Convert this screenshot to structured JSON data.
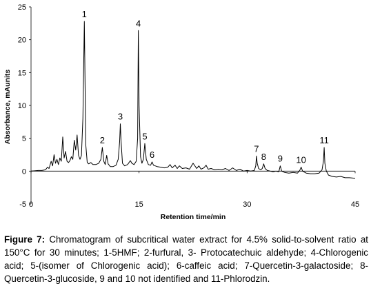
{
  "chart_data": {
    "type": "line",
    "xlabel": "Retention time/min",
    "ylabel": "Absorbance, mAunits",
    "xlim": [
      0,
      45
    ],
    "ylim": [
      -5,
      25
    ],
    "x_ticks": [
      "0",
      "15",
      "30",
      "45"
    ],
    "y_ticks": [
      "25",
      "20",
      "15",
      "10",
      "5",
      "0",
      "-5"
    ],
    "peaks": [
      {
        "label": "1",
        "x": 7.4,
        "y": 22.8
      },
      {
        "label": "2",
        "x": 9.9,
        "y": 3.6
      },
      {
        "label": "3",
        "x": 12.4,
        "y": 7.2
      },
      {
        "label": "4",
        "x": 14.9,
        "y": 21.4
      },
      {
        "label": "5",
        "x": 15.8,
        "y": 4.2
      },
      {
        "label": "6",
        "x": 16.8,
        "y": 1.4
      },
      {
        "label": "7",
        "x": 31.3,
        "y": 2.3
      },
      {
        "label": "8",
        "x": 32.3,
        "y": 1.1
      },
      {
        "label": "9",
        "x": 34.6,
        "y": 0.8
      },
      {
        "label": "10",
        "x": 37.5,
        "y": 0.6
      },
      {
        "label": "11",
        "x": 40.7,
        "y": 3.6
      }
    ],
    "trace": {
      "x": [
        0,
        0.5,
        1,
        1.5,
        2,
        2.3,
        2.5,
        2.8,
        3.0,
        3.2,
        3.4,
        3.6,
        3.8,
        4.0,
        4.2,
        4.4,
        4.6,
        4.8,
        5.0,
        5.2,
        5.4,
        5.6,
        5.8,
        6.0,
        6.2,
        6.4,
        6.6,
        6.8,
        7.0,
        7.2,
        7.4,
        7.6,
        7.8,
        8.0,
        8.3,
        8.6,
        9.0,
        9.4,
        9.7,
        9.9,
        10.1,
        10.3,
        10.5,
        10.7,
        11.0,
        11.4,
        11.8,
        12.1,
        12.3,
        12.4,
        12.5,
        12.7,
        13.0,
        13.4,
        13.8,
        14.0,
        14.3,
        14.6,
        14.8,
        14.9,
        15.0,
        15.2,
        15.4,
        15.6,
        15.8,
        16.0,
        16.3,
        16.6,
        16.8,
        17.0,
        17.5,
        18.0,
        18.5,
        19.0,
        19.3,
        19.6,
        20.0,
        20.3,
        20.6,
        21.0,
        21.5,
        22.0,
        22.5,
        23.0,
        23.3,
        23.6,
        24.0,
        24.3,
        24.6,
        25.0,
        25.5,
        26.0,
        26.5,
        27.0,
        27.5,
        28.0,
        28.5,
        29.0,
        29.5,
        30.0,
        30.5,
        31.0,
        31.2,
        31.3,
        31.4,
        31.6,
        31.9,
        32.1,
        32.3,
        32.5,
        32.8,
        33.2,
        33.6,
        34.0,
        34.4,
        34.6,
        34.8,
        35.2,
        35.8,
        36.4,
        37.0,
        37.3,
        37.5,
        37.7,
        38.2,
        38.8,
        39.4,
        40.0,
        40.4,
        40.6,
        40.7,
        40.8,
        41.0,
        41.3,
        41.8,
        42.4,
        43.0,
        43.6,
        44.2,
        45.0
      ],
      "y": [
        0,
        0.05,
        0.1,
        0.1,
        0.2,
        0.6,
        0.4,
        1.5,
        0.8,
        2.5,
        1.2,
        1.8,
        1.0,
        2.0,
        1.5,
        5.2,
        2.0,
        3.0,
        1.5,
        1.3,
        1.6,
        2.2,
        1.8,
        4.7,
        3.2,
        5.5,
        2.4,
        1.8,
        2.4,
        8.0,
        22.8,
        4.0,
        1.3,
        1.1,
        1.3,
        1.0,
        1.0,
        1.2,
        1.8,
        3.6,
        1.5,
        1.0,
        2.4,
        1.1,
        0.7,
        0.7,
        0.9,
        1.8,
        4.5,
        7.2,
        4.5,
        1.2,
        0.8,
        1.0,
        1.6,
        1.2,
        1.0,
        1.5,
        5.0,
        21.4,
        10.0,
        2.2,
        1.2,
        1.8,
        4.2,
        1.8,
        1.0,
        0.9,
        1.4,
        0.9,
        0.7,
        0.6,
        0.5,
        0.6,
        1.0,
        0.5,
        0.9,
        0.4,
        0.8,
        0.4,
        0.5,
        0.3,
        1.2,
        0.4,
        0.8,
        0.3,
        0.5,
        0.9,
        0.3,
        0.4,
        0.2,
        0.3,
        0.2,
        0.4,
        0.1,
        0.5,
        0.1,
        0.3,
        0.0,
        0.1,
        0.0,
        0.1,
        0.8,
        2.3,
        1.2,
        0.4,
        0.2,
        0.4,
        1.1,
        0.4,
        0.1,
        0.0,
        -0.1,
        0.0,
        -0.1,
        0.8,
        0.0,
        -0.2,
        -0.3,
        -0.2,
        -0.3,
        0.1,
        0.6,
        0.0,
        -0.3,
        -0.4,
        -0.4,
        -0.3,
        0.2,
        1.5,
        3.6,
        1.2,
        0.0,
        -0.6,
        -0.8,
        -0.9,
        -0.8,
        -1.0,
        -1.0,
        -1.1
      ]
    }
  },
  "caption": {
    "label": "Figure 7:",
    "text": " Chromatogram of subcritical water extract for 4.5% solid-to-solvent ratio at 150°C for 30 minutes; 1-5HMF; 2-furfural, 3- Protocatechuic aldehyde; 4-Chlorogenic acid; 5-(isomer of Chlorogenic acid); 6-caffeic acid; 7-Quercetin-3-galactoside; 8-Quercetin-3-glucoside, 9 and 10 not identified and 11-Phlorodzin."
  }
}
